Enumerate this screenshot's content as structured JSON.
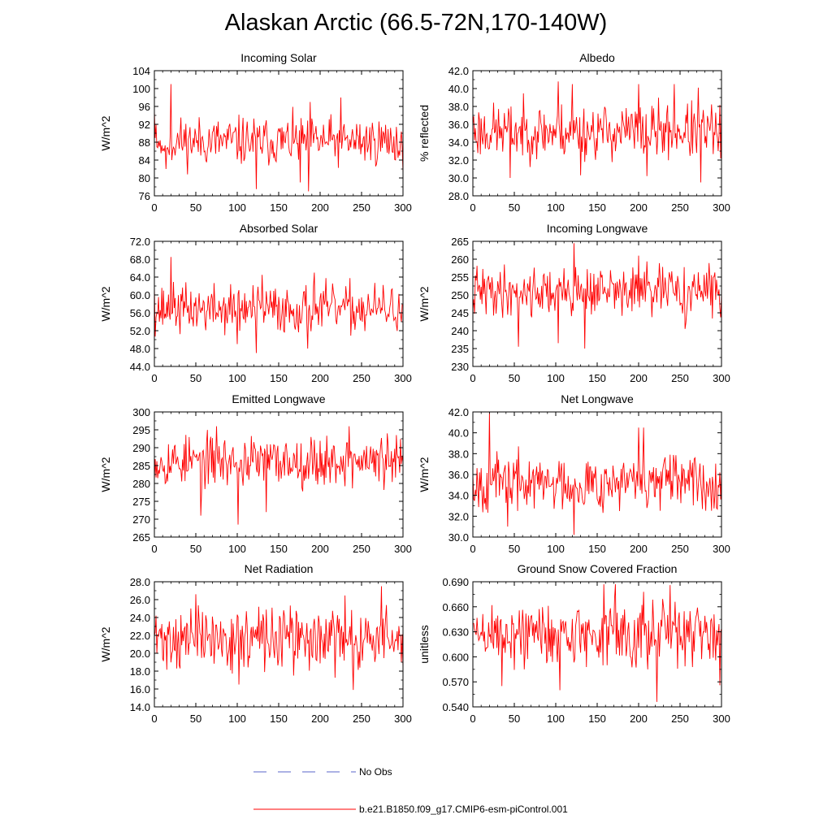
{
  "title": "Alaskan Arctic (66.5-72N,170-140W)",
  "legend": [
    {
      "label": "No Obs",
      "color": "#5a64c8",
      "style": "dashed"
    },
    {
      "label": "b.e21.B1850.f09_g17.CMIP6-esm-piControl.001",
      "color": "#ff0000",
      "style": "solid"
    }
  ],
  "chart_data": [
    {
      "type": "line",
      "title": "Incoming Solar",
      "ylabel": "W/m^2",
      "xlim": [
        0,
        300
      ],
      "xticks": [
        0,
        50,
        100,
        150,
        200,
        250,
        300
      ],
      "ylim": [
        76,
        104
      ],
      "yticks": [
        76,
        80,
        84,
        88,
        92,
        96,
        100,
        104
      ],
      "ytick_labels": [
        "76",
        "80",
        "84",
        "88",
        "92",
        "96",
        "100",
        "104"
      ],
      "series": [
        {
          "name": "b.e21.B1850.f09_g17.CMIP6-esm-piControl.001",
          "mean": 88.2,
          "spread": 3.0,
          "seed": 11,
          "keypoints": [
            [
              0,
              95
            ],
            [
              2,
              92
            ],
            [
              6,
              87
            ],
            [
              10,
              86
            ],
            [
              14,
              82
            ],
            [
              20,
              101
            ],
            [
              22,
              86
            ],
            [
              123,
              77.5
            ],
            [
              176,
              79
            ],
            [
              186,
              77
            ],
            [
              188,
              97
            ],
            [
              225,
              98
            ],
            [
              296,
              85
            ]
          ]
        }
      ]
    },
    {
      "type": "line",
      "title": "Albedo",
      "ylabel": "% reflected",
      "xlim": [
        0,
        300
      ],
      "xticks": [
        0,
        50,
        100,
        150,
        200,
        250,
        300
      ],
      "ylim": [
        28,
        42
      ],
      "yticks": [
        28,
        30,
        32,
        34,
        36,
        38,
        40,
        42
      ],
      "ytick_labels": [
        "28.0",
        "30.0",
        "32.0",
        "34.0",
        "36.0",
        "38.0",
        "40.0",
        "42.0"
      ],
      "series": [
        {
          "name": "b.e21.B1850.f09_g17.CMIP6-esm-piControl.001",
          "mean": 35.2,
          "spread": 1.7,
          "seed": 23,
          "keypoints": [
            [
              0,
              36
            ],
            [
              45,
              30
            ],
            [
              103,
              40.8
            ],
            [
              120,
              40.5
            ],
            [
              130,
              30.3
            ],
            [
              200,
              40.5
            ],
            [
              210,
              30.2
            ],
            [
              243,
              40.5
            ],
            [
              272,
              40.1
            ],
            [
              275,
              29.5
            ],
            [
              296,
              33
            ]
          ]
        }
      ]
    },
    {
      "type": "line",
      "title": "Absorbed Solar",
      "ylabel": "W/m^2",
      "xlim": [
        0,
        300
      ],
      "xticks": [
        0,
        50,
        100,
        150,
        200,
        250,
        300
      ],
      "ylim": [
        44,
        72
      ],
      "yticks": [
        44,
        48,
        52,
        56,
        60,
        64,
        68,
        72
      ],
      "ytick_labels": [
        "44.0",
        "48.0",
        "52.0",
        "56.0",
        "60.0",
        "64.0",
        "68.0",
        "72.0"
      ],
      "series": [
        {
          "name": "b.e21.B1850.f09_g17.CMIP6-esm-piControl.001",
          "mean": 56.8,
          "spread": 3.0,
          "seed": 37,
          "keypoints": [
            [
              0,
              62
            ],
            [
              20,
              68.5
            ],
            [
              22,
              56
            ],
            [
              100,
              49
            ],
            [
              123,
              47
            ],
            [
              130,
              64.5
            ],
            [
              185,
              48
            ],
            [
              193,
              65
            ],
            [
              296,
              56
            ]
          ]
        }
      ]
    },
    {
      "type": "line",
      "title": "Incoming Longwave",
      "ylabel": "W/m^2",
      "xlim": [
        0,
        300
      ],
      "xticks": [
        0,
        50,
        100,
        150,
        200,
        250,
        300
      ],
      "ylim": [
        230,
        265
      ],
      "yticks": [
        230,
        235,
        240,
        245,
        250,
        255,
        260,
        265
      ],
      "ytick_labels": [
        "230",
        "235",
        "240",
        "245",
        "250",
        "255",
        "260",
        "265"
      ],
      "series": [
        {
          "name": "b.e21.B1850.f09_g17.CMIP6-esm-piControl.001",
          "mean": 251,
          "spread": 3.8,
          "seed": 41,
          "keypoints": [
            [
              0,
              246
            ],
            [
              55,
              235.5
            ],
            [
              103,
              236.5
            ],
            [
              122,
              264.5
            ],
            [
              135,
              235
            ],
            [
              200,
              261
            ],
            [
              256,
              240.5
            ],
            [
              296,
              250
            ]
          ]
        }
      ]
    },
    {
      "type": "line",
      "title": "Emitted Longwave",
      "ylabel": "W/m^2",
      "xlim": [
        0,
        300
      ],
      "xticks": [
        0,
        50,
        100,
        150,
        200,
        250,
        300
      ],
      "ylim": [
        265,
        300
      ],
      "yticks": [
        265,
        270,
        275,
        280,
        285,
        290,
        295,
        300
      ],
      "ytick_labels": [
        "265",
        "270",
        "275",
        "280",
        "285",
        "290",
        "295",
        "300"
      ],
      "series": [
        {
          "name": "b.e21.B1850.f09_g17.CMIP6-esm-piControl.001",
          "mean": 286.2,
          "spread": 3.9,
          "seed": 53,
          "keypoints": [
            [
              0,
              281
            ],
            [
              56,
              271
            ],
            [
              75,
              296
            ],
            [
              101,
              268.5
            ],
            [
              135,
              272
            ],
            [
              235,
              296
            ],
            [
              296,
              283
            ]
          ]
        }
      ]
    },
    {
      "type": "line",
      "title": "Net Longwave",
      "ylabel": "W/m^2",
      "xlim": [
        0,
        300
      ],
      "xticks": [
        0,
        50,
        100,
        150,
        200,
        250,
        300
      ],
      "ylim": [
        30,
        42
      ],
      "yticks": [
        30,
        32,
        34,
        36,
        38,
        40,
        42
      ],
      "ytick_labels": [
        "30.0",
        "32.0",
        "34.0",
        "36.0",
        "38.0",
        "40.0",
        "42.0"
      ],
      "series": [
        {
          "name": "b.e21.B1850.f09_g17.CMIP6-esm-piControl.001",
          "mean": 35.2,
          "spread": 1.45,
          "seed": 67,
          "keypoints": [
            [
              0,
              36
            ],
            [
              20,
              42
            ],
            [
              22,
              35
            ],
            [
              42,
              31
            ],
            [
              122,
              30.2
            ],
            [
              200,
              40.5
            ],
            [
              206,
              40.5
            ],
            [
              296,
              35
            ]
          ]
        }
      ]
    },
    {
      "type": "line",
      "title": "Net Radiation",
      "ylabel": "W/m^2",
      "xlim": [
        0,
        300
      ],
      "xticks": [
        0,
        50,
        100,
        150,
        200,
        250,
        300
      ],
      "ylim": [
        14,
        28
      ],
      "yticks": [
        14,
        16,
        18,
        20,
        22,
        24,
        26,
        28
      ],
      "ytick_labels": [
        "14.0",
        "16.0",
        "18.0",
        "20.0",
        "22.0",
        "24.0",
        "26.0",
        "28.0"
      ],
      "series": [
        {
          "name": "b.e21.B1850.f09_g17.CMIP6-esm-piControl.001",
          "mean": 21.6,
          "spread": 1.9,
          "seed": 71,
          "keypoints": [
            [
              0,
              22
            ],
            [
              50,
              26.6
            ],
            [
              102,
              16.5
            ],
            [
              240,
              15.9
            ],
            [
              274,
              27.5
            ],
            [
              296,
              22
            ]
          ]
        }
      ]
    },
    {
      "type": "line",
      "title": "Ground Snow Covered Fraction",
      "ylabel": "unitless",
      "xlim": [
        0,
        300
      ],
      "xticks": [
        0,
        50,
        100,
        150,
        200,
        250,
        300
      ],
      "ylim": [
        0.54,
        0.69
      ],
      "yticks": [
        0.54,
        0.57,
        0.6,
        0.63,
        0.66,
        0.69
      ],
      "ytick_labels": [
        "0.540",
        "0.570",
        "0.600",
        "0.630",
        "0.660",
        "0.690"
      ],
      "series": [
        {
          "name": "b.e21.B1850.f09_g17.CMIP6-esm-piControl.001",
          "mean": 0.627,
          "spread": 0.022,
          "seed": 89,
          "keypoints": [
            [
              0,
              0.64
            ],
            [
              35,
              0.565
            ],
            [
              105,
              0.56
            ],
            [
              158,
              0.687
            ],
            [
              172,
              0.687
            ],
            [
              222,
              0.546
            ],
            [
              238,
              0.686
            ],
            [
              298,
              0.566
            ]
          ]
        }
      ]
    }
  ]
}
